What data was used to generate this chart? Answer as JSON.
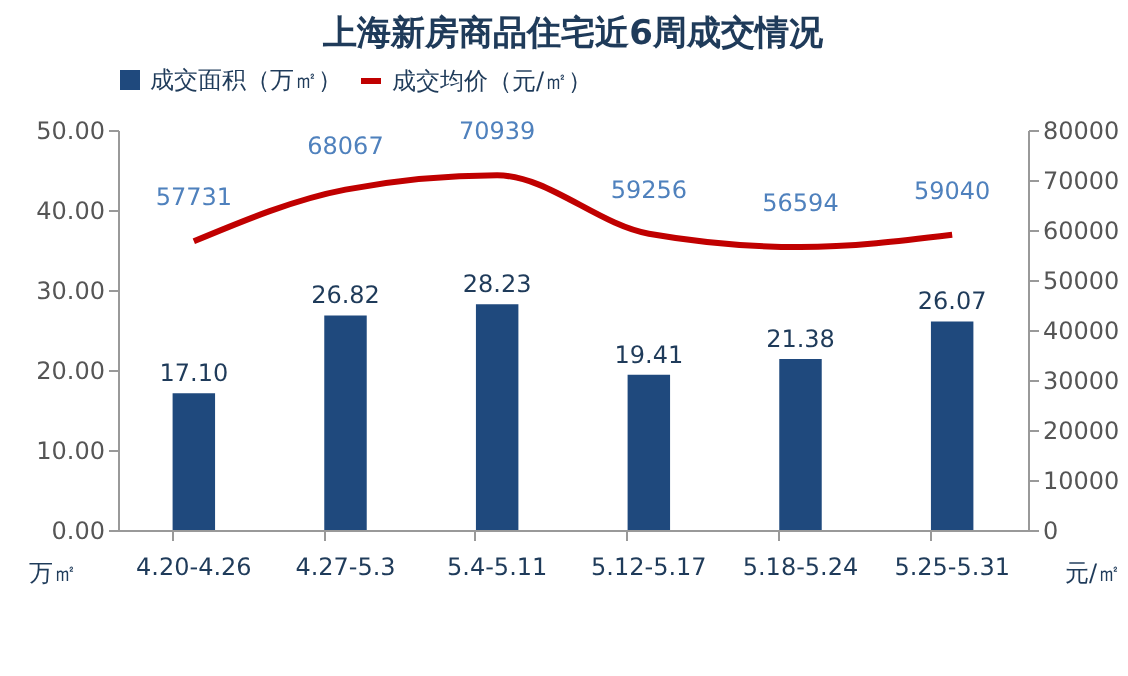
{
  "chart_data": {
    "type": "bar",
    "title": "上海新房商品住宅近6周成交情况",
    "categories": [
      "4.20-4.26",
      "4.27-5.3",
      "5.4-5.11",
      "5.12-5.17",
      "5.18-5.24",
      "5.25-5.31"
    ],
    "series": [
      {
        "name": "成交面积（万㎡）",
        "color": "#1f497d",
        "values": [
          17.1,
          26.82,
          28.23,
          19.41,
          21.38,
          26.07
        ],
        "value_labels": [
          "17.10",
          "26.82",
          "28.23",
          "19.41",
          "21.38",
          "26.07"
        ]
      },
      {
        "name": "成交均价（元/㎡）",
        "type": "line",
        "axis": "y2",
        "color": "#c00000",
        "values": [
          57731,
          68067,
          70939,
          59256,
          56594,
          59040
        ]
      }
    ],
    "ylabel": "万㎡",
    "y2label": "元/㎡",
    "ylim": [
      0,
      50
    ],
    "yticks": [
      {
        "value": 0,
        "label": "0.00"
      },
      {
        "value": 10,
        "label": "10.00"
      },
      {
        "value": 20,
        "label": "20.00"
      },
      {
        "value": 30,
        "label": "30.00"
      },
      {
        "value": 40,
        "label": "40.00"
      },
      {
        "value": 50,
        "label": "50.00"
      }
    ],
    "y2lim": [
      0,
      80000
    ],
    "y2ticks": [
      0,
      10000,
      20000,
      30000,
      40000,
      50000,
      60000,
      70000,
      80000
    ],
    "data_labels": true,
    "legend": "top",
    "grid": false
  }
}
